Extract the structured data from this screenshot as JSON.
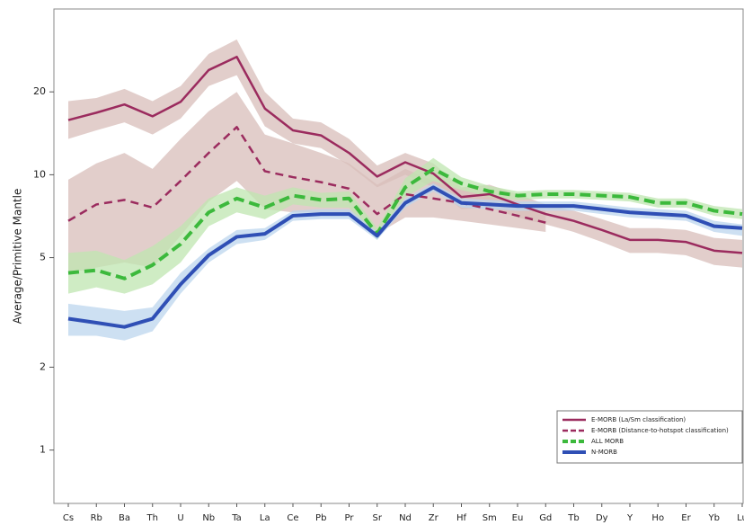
{
  "chart_data": {
    "type": "line",
    "y_label": "Average/Primitive Mantle",
    "log_y": true,
    "legend": "lower right",
    "categories": [
      "Cs",
      "Rb",
      "Ba",
      "Th",
      "U",
      "Nb",
      "Ta",
      "La",
      "Ce",
      "Pb",
      "Pr",
      "Sr",
      "Nd",
      "Zr",
      "Hf",
      "Sm",
      "Eu",
      "Gd",
      "Tb",
      "Dy",
      "Y",
      "Ho",
      "Er",
      "Yb",
      "Lu"
    ],
    "ylim": [
      0.64,
      40
    ],
    "yticks": [
      1,
      2,
      5,
      10,
      20
    ],
    "series": [
      {
        "name": "E-MORB (La/Sm classification)",
        "color": "#9b2b5e",
        "dash": false,
        "band_color": "#d8bdb9",
        "values": [
          15.8,
          16.8,
          18,
          16.3,
          18.4,
          24,
          26.8,
          17.4,
          14.5,
          13.9,
          12,
          9.85,
          11.1,
          10.1,
          8.3,
          8.5,
          7.8,
          7.2,
          6.8,
          6.3,
          5.8,
          5.8,
          5.7,
          5.3,
          5.2
        ],
        "band_low": [
          13.5,
          14.5,
          15.5,
          14,
          16,
          21,
          23,
          15,
          13,
          12.5,
          10.8,
          9,
          10,
          9,
          7.5,
          7.6,
          7,
          6.6,
          6.2,
          5.7,
          5.2,
          5.2,
          5.1,
          4.7,
          4.6
        ],
        "band_high": [
          18.5,
          19,
          20.5,
          18.5,
          21,
          27.5,
          31,
          20,
          16,
          15.5,
          13.5,
          10.8,
          12,
          11,
          9,
          9.2,
          8.5,
          7.8,
          7.4,
          6.9,
          6.4,
          6.4,
          6.3,
          5.9,
          5.8
        ]
      },
      {
        "name": "E-MORB (Distance-to-hotspot classification)",
        "color": "#9b2b5e",
        "dash": true,
        "band_color": "#d8bdb9",
        "values": [
          6.8,
          7.8,
          8.1,
          7.6,
          9.5,
          12,
          14.9,
          10.3,
          9.8,
          9.4,
          8.9,
          7.2,
          8.5,
          8.2,
          7.9,
          7.5,
          7.1,
          6.7,
          null,
          null,
          null,
          null,
          null,
          null,
          null
        ],
        "band_low": [
          4.4,
          4.6,
          4.8,
          4.6,
          6,
          8,
          9.5,
          7.5,
          7.3,
          7.3,
          7.3,
          6.1,
          7,
          7,
          6.8,
          6.6,
          6.4,
          6.2,
          null,
          null,
          null,
          null,
          null,
          null,
          null
        ],
        "band_high": [
          9.6,
          11,
          12,
          10.5,
          13.5,
          17,
          20,
          14,
          13,
          12,
          11,
          9.2,
          10.5,
          9.5,
          8.8,
          8.4,
          8,
          7.4,
          null,
          null,
          null,
          null,
          null,
          null,
          null
        ]
      },
      {
        "name": "ALL MORB",
        "color": "#3cb93c",
        "dash": true,
        "band_color": "#bfe6b0",
        "values": [
          4.4,
          4.5,
          4.2,
          4.7,
          5.6,
          7.3,
          8.2,
          7.6,
          8.4,
          8.1,
          8.2,
          6.1,
          9,
          10.5,
          9.3,
          8.7,
          8.4,
          8.5,
          8.5,
          8.4,
          8.3,
          7.9,
          7.9,
          7.4,
          7.2
        ],
        "band_low": [
          3.7,
          3.9,
          3.7,
          4.0,
          4.8,
          6.5,
          7.3,
          6.9,
          7.8,
          7.6,
          7.6,
          5.8,
          8.3,
          9.5,
          8.8,
          8.3,
          8.1,
          8.2,
          8.2,
          8.1,
          8.0,
          7.6,
          7.6,
          7.1,
          6.9
        ],
        "band_high": [
          5.2,
          5.3,
          4.9,
          5.5,
          6.5,
          8.2,
          9.0,
          8.4,
          9.0,
          8.6,
          8.7,
          6.4,
          9.7,
          11.5,
          9.8,
          9.1,
          8.7,
          8.8,
          8.8,
          8.7,
          8.6,
          8.2,
          8.2,
          7.7,
          7.5
        ]
      },
      {
        "name": "N-MORB",
        "color": "#2f4fb5",
        "dash": false,
        "band_color": "#bcd6ee",
        "values": [
          3.0,
          2.9,
          2.8,
          3.0,
          4.0,
          5.1,
          5.95,
          6.1,
          7.1,
          7.2,
          7.2,
          6.0,
          7.9,
          9.0,
          7.9,
          7.8,
          7.7,
          7.7,
          7.7,
          7.5,
          7.3,
          7.2,
          7.1,
          6.5,
          6.4
        ],
        "band_low": [
          2.6,
          2.6,
          2.5,
          2.7,
          3.7,
          4.8,
          5.6,
          5.8,
          6.8,
          6.9,
          6.9,
          5.8,
          7.6,
          8.7,
          7.6,
          7.5,
          7.4,
          7.4,
          7.4,
          7.2,
          7.0,
          6.9,
          6.8,
          6.2,
          6.0
        ],
        "band_high": [
          3.4,
          3.3,
          3.2,
          3.3,
          4.4,
          5.4,
          6.3,
          6.4,
          7.4,
          7.5,
          7.5,
          6.2,
          8.2,
          9.3,
          8.2,
          8.1,
          8.0,
          8.0,
          8.0,
          7.8,
          7.6,
          7.5,
          7.4,
          6.8,
          6.6
        ]
      }
    ]
  }
}
